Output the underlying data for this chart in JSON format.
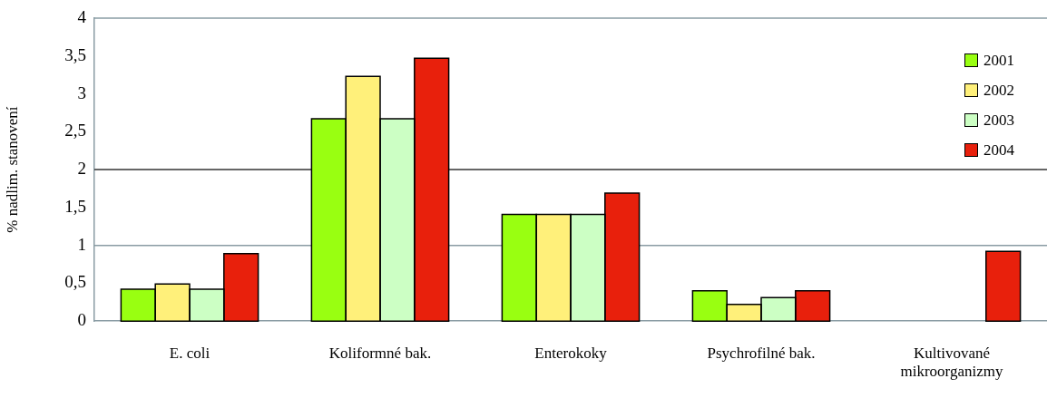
{
  "chart_data": {
    "type": "bar",
    "ylabel": "% nadlim. stanovení",
    "categories": [
      "E. coli",
      "Koliformné bak.",
      "Enterokoky",
      "Psychrofilné bak.",
      "Kultivované mikroorganizmy"
    ],
    "series": [
      {
        "name": "2001",
        "color": "#99ff11",
        "values": [
          0.42,
          2.67,
          1.41,
          0.4,
          null
        ]
      },
      {
        "name": "2002",
        "color": "#fff07a",
        "values": [
          0.49,
          3.23,
          1.41,
          0.22,
          null
        ]
      },
      {
        "name": "2003",
        "color": "#ccffc4",
        "values": [
          0.42,
          2.67,
          1.41,
          0.31,
          null
        ]
      },
      {
        "name": "2004",
        "color": "#e8200c",
        "values": [
          0.89,
          3.47,
          1.69,
          0.4,
          0.92
        ]
      }
    ],
    "ylim": [
      0,
      4
    ],
    "yticks": [
      0,
      {
        "value": 0.5,
        "label": "0,5"
      },
      1,
      {
        "value": 1.5,
        "label": "1,5"
      },
      2,
      {
        "value": 2.5,
        "label": "2,5"
      },
      3,
      {
        "value": 3.5,
        "label": "3,5"
      },
      4
    ],
    "ref_lines": [
      {
        "axis": "y",
        "value": 1,
        "color": "#8a9ca4"
      },
      {
        "axis": "y",
        "value": 2,
        "color": "#333333"
      }
    ],
    "legend": "top right"
  }
}
